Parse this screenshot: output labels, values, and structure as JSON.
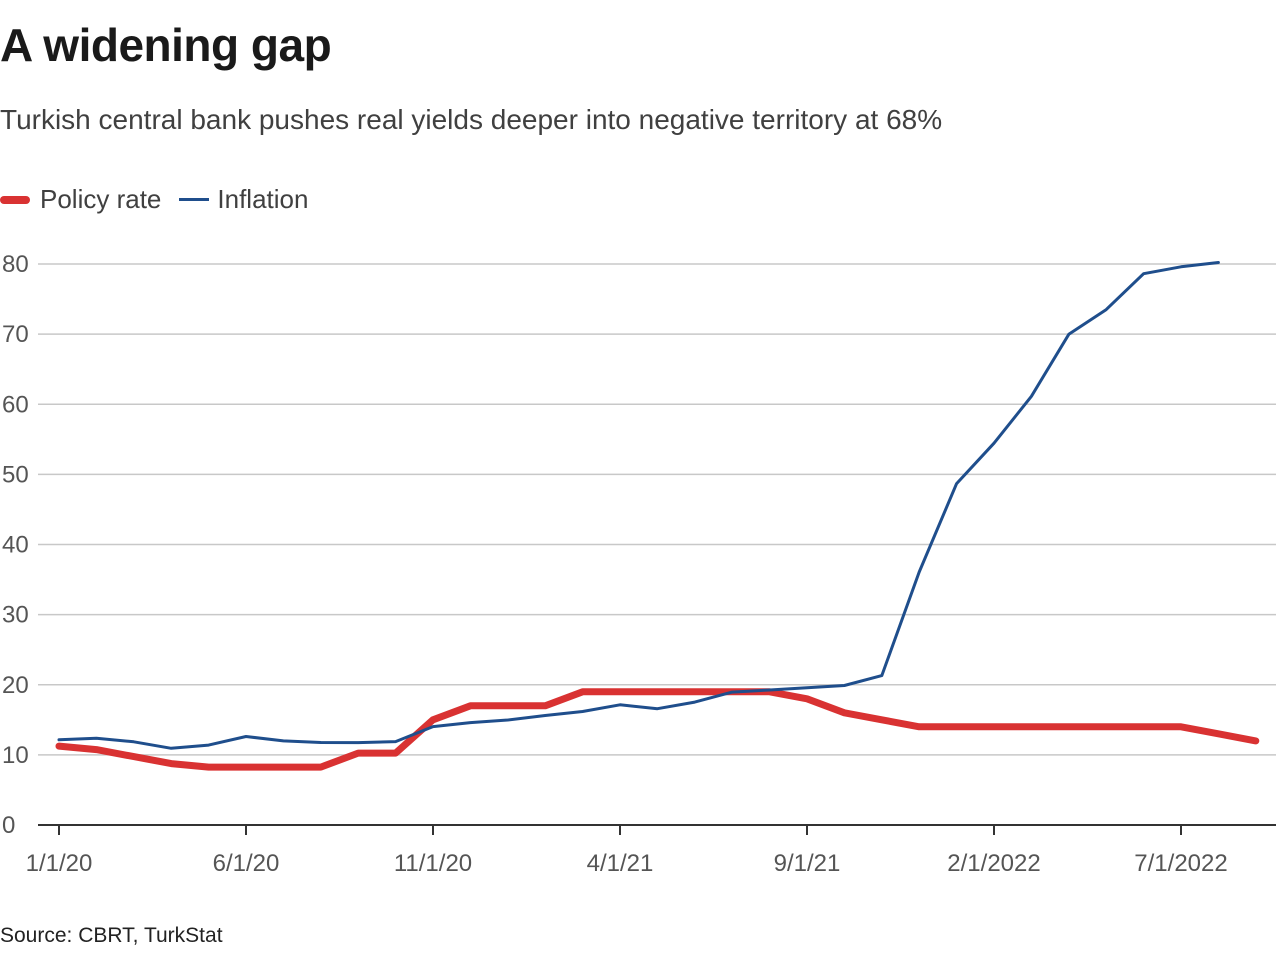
{
  "title": "A widening gap",
  "subtitle": "Turkish central bank pushes real yields deeper into negative territory at 68%",
  "source": "Source: CBRT, TurkStat",
  "legend": {
    "policy_label": "Policy rate",
    "inflation_label": "Inflation"
  },
  "colors": {
    "policy": "#d93232",
    "inflation": "#1f4e8c",
    "grid": "#c8c8c8",
    "axis": "#333333"
  },
  "chart_data": {
    "type": "line",
    "title": "A widening gap",
    "subtitle": "Turkish central bank pushes real yields deeper into negative territory at 68%",
    "xlabel": "",
    "ylabel": "",
    "ylim": [
      0,
      80
    ],
    "yticks": [
      0,
      10,
      20,
      30,
      40,
      50,
      60,
      70,
      80
    ],
    "xticks": [
      {
        "index": 0,
        "label": "1/1/20"
      },
      {
        "index": 5,
        "label": "6/1/20"
      },
      {
        "index": 10,
        "label": "11/1/20"
      },
      {
        "index": 15,
        "label": "4/1/21"
      },
      {
        "index": 20,
        "label": "9/1/21"
      },
      {
        "index": 25,
        "label": "2/1/2022"
      },
      {
        "index": 30,
        "label": "7/1/2022"
      }
    ],
    "x_range": [
      -0.5,
      33.3
    ],
    "grid": true,
    "legend_position": "top-left",
    "series": [
      {
        "name": "Policy rate",
        "style": "thick",
        "points": [
          [
            0,
            11.25
          ],
          [
            1,
            10.75
          ],
          [
            2,
            9.75
          ],
          [
            3,
            8.75
          ],
          [
            4,
            8.25
          ],
          [
            5,
            8.25
          ],
          [
            6,
            8.25
          ],
          [
            7,
            8.25
          ],
          [
            8,
            10.25
          ],
          [
            9,
            10.25
          ],
          [
            10,
            15
          ],
          [
            11,
            17
          ],
          [
            12,
            17
          ],
          [
            13,
            17
          ],
          [
            14,
            19
          ],
          [
            15,
            19
          ],
          [
            16,
            19
          ],
          [
            17,
            19
          ],
          [
            18,
            19
          ],
          [
            19,
            19
          ],
          [
            20,
            18
          ],
          [
            21,
            16
          ],
          [
            22,
            15
          ],
          [
            23,
            14
          ],
          [
            24,
            14
          ],
          [
            25,
            14
          ],
          [
            26,
            14
          ],
          [
            27,
            14
          ],
          [
            28,
            14
          ],
          [
            29,
            14
          ],
          [
            30,
            14
          ],
          [
            31,
            13
          ],
          [
            32,
            12
          ]
        ]
      },
      {
        "name": "Inflation",
        "style": "thin",
        "points": [
          [
            0,
            12.15
          ],
          [
            1,
            12.37
          ],
          [
            2,
            11.86
          ],
          [
            3,
            10.94
          ],
          [
            4,
            11.39
          ],
          [
            5,
            12.62
          ],
          [
            6,
            12.0
          ],
          [
            7,
            11.77
          ],
          [
            8,
            11.75
          ],
          [
            9,
            11.89
          ],
          [
            10,
            14.03
          ],
          [
            11,
            14.6
          ],
          [
            12,
            14.97
          ],
          [
            13,
            15.61
          ],
          [
            14,
            16.19
          ],
          [
            15,
            17.14
          ],
          [
            16,
            16.59
          ],
          [
            17,
            17.53
          ],
          [
            18,
            18.95
          ],
          [
            19,
            19.25
          ],
          [
            20,
            19.58
          ],
          [
            21,
            19.89
          ],
          [
            22,
            21.31
          ],
          [
            23,
            36.08
          ],
          [
            24,
            48.69
          ],
          [
            25,
            54.44
          ],
          [
            26,
            61.14
          ],
          [
            27,
            69.97
          ],
          [
            28,
            73.5
          ],
          [
            29,
            78.62
          ],
          [
            30,
            79.6
          ],
          [
            31,
            80.21
          ]
        ]
      }
    ]
  }
}
